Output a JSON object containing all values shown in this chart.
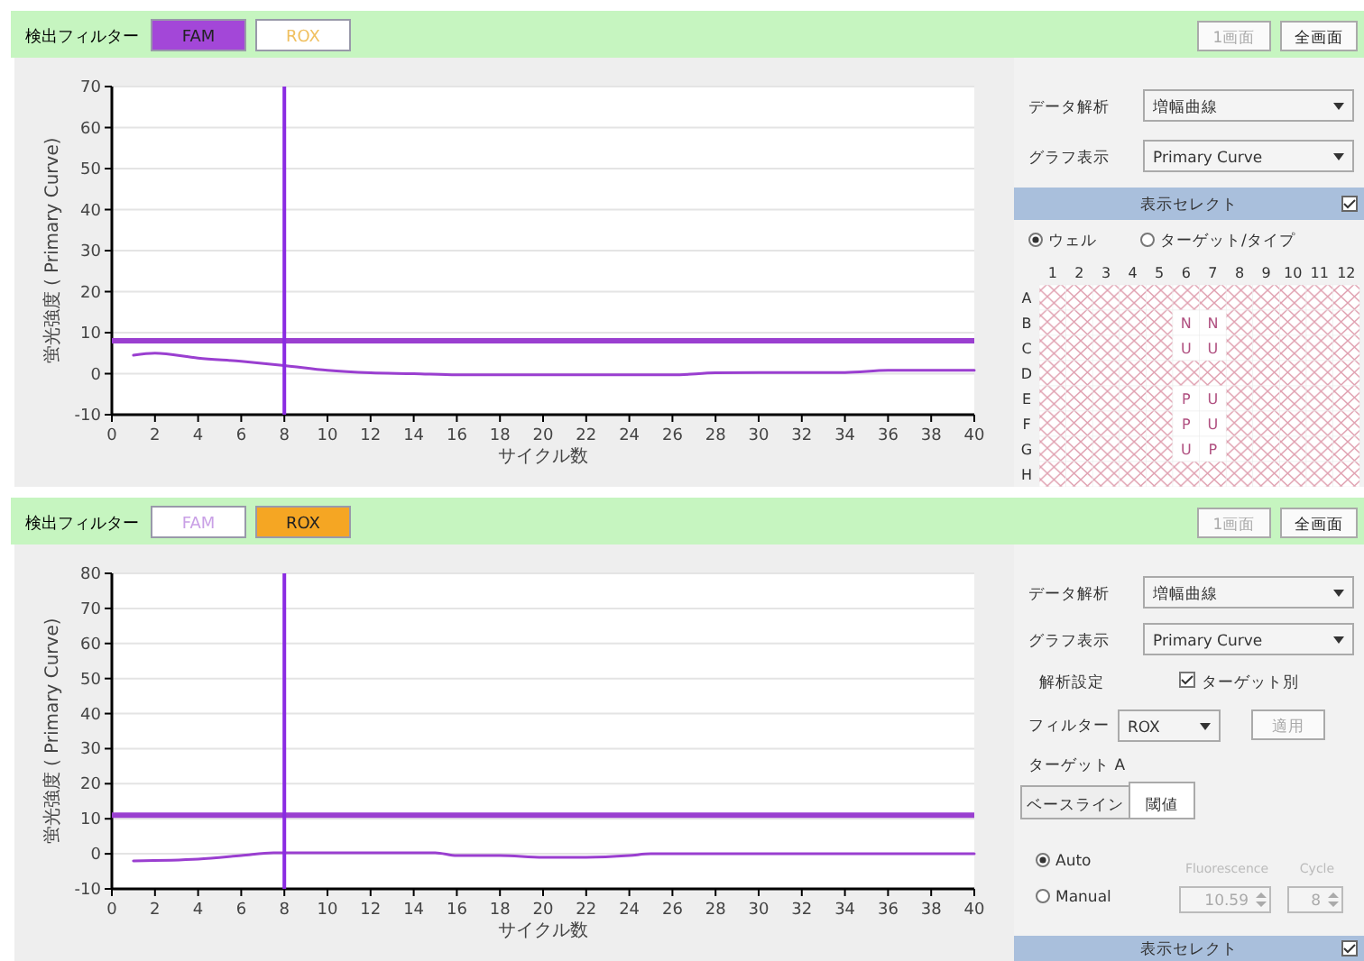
{
  "chart_data": [
    {
      "type": "line",
      "xlabel": "サイクル数",
      "ylabel": "蛍光強度 ( Primary Curve)",
      "xlim": [
        0,
        40
      ],
      "xticks": [
        0,
        2,
        4,
        6,
        8,
        10,
        12,
        14,
        16,
        18,
        20,
        22,
        24,
        26,
        28,
        30,
        32,
        34,
        36,
        38,
        40
      ],
      "ylim": [
        -10,
        70
      ],
      "yticks": [
        -10,
        0,
        10,
        20,
        30,
        40,
        50,
        60,
        70
      ],
      "grid": "y",
      "annotations": [
        "検出フィルター",
        "FAM",
        "ROX"
      ],
      "series": [
        {
          "color": "#9a3fd0",
          "x": [
            1,
            2,
            4,
            6,
            8,
            10,
            12,
            14,
            16,
            18,
            20,
            22,
            24,
            26,
            28,
            30,
            32,
            34,
            36,
            38,
            40
          ],
          "values": [
            4.5,
            5,
            3.8,
            3,
            2,
            0.8,
            0.2,
            0,
            -0.3,
            -0.3,
            -0.3,
            -0.3,
            -0.3,
            -0.3,
            0.2,
            0.3,
            0.3,
            0.3,
            0.8,
            0.8,
            0.8
          ]
        }
      ],
      "ref_lines": [
        {
          "axis": "y",
          "value": 8,
          "color": "#9a3fd0"
        },
        {
          "axis": "x",
          "value": 8,
          "color": "#8a2be2"
        }
      ]
    },
    {
      "type": "other",
      "annotations": [
        "1画面",
        "全画面",
        "データ解析",
        "増幅曲線",
        "グラフ表示",
        "Primary Curve",
        "表示セレクト",
        "ウェル",
        "ターゲット/タイプ"
      ]
    },
    {
      "type": "heatmap",
      "categories": [
        "1",
        "2",
        "3",
        "4",
        "5",
        "6",
        "7",
        "8",
        "9",
        "10",
        "11",
        "12"
      ],
      "y_categories": [
        "A",
        "B",
        "C",
        "D",
        "E",
        "F",
        "G",
        "H"
      ],
      "cells": [
        [
          null,
          null,
          null,
          null,
          null,
          null,
          null,
          null,
          null,
          null,
          null,
          null
        ],
        [
          null,
          null,
          null,
          null,
          null,
          null,
          null,
          null,
          null,
          null,
          null,
          null
        ],
        [
          null,
          null,
          null,
          null,
          null,
          null,
          null,
          null,
          null,
          null,
          null,
          null
        ],
        [
          null,
          null,
          null,
          null,
          null,
          null,
          null,
          null,
          null,
          null,
          null,
          null
        ],
        [
          null,
          null,
          null,
          null,
          null,
          null,
          null,
          null,
          null,
          null,
          null,
          null
        ],
        [
          null,
          null,
          null,
          null,
          null,
          null,
          null,
          null,
          null,
          null,
          null,
          null
        ],
        [
          null,
          null,
          null,
          null,
          null,
          null,
          null,
          null,
          null,
          null,
          null,
          null
        ],
        [
          null,
          null,
          null,
          null,
          null,
          null,
          null,
          null,
          null,
          null,
          null,
          null
        ]
      ],
      "cell_labels": [
        [
          null,
          null,
          null,
          null,
          null,
          null,
          null,
          null,
          null,
          null,
          null,
          null
        ],
        [
          null,
          null,
          null,
          null,
          null,
          "N",
          "N",
          null,
          null,
          null,
          null,
          null
        ],
        [
          null,
          null,
          null,
          null,
          null,
          "U",
          "U",
          null,
          null,
          null,
          null,
          null
        ],
        [
          null,
          null,
          null,
          null,
          null,
          null,
          null,
          null,
          null,
          null,
          null,
          null
        ],
        [
          null,
          null,
          null,
          null,
          null,
          "P",
          "U",
          null,
          null,
          null,
          null,
          null
        ],
        [
          null,
          null,
          null,
          null,
          null,
          "P",
          "U",
          null,
          null,
          null,
          null,
          null
        ],
        [
          null,
          null,
          null,
          null,
          null,
          "U",
          "P",
          null,
          null,
          null,
          null,
          null
        ],
        [
          null,
          null,
          null,
          null,
          null,
          null,
          null,
          null,
          null,
          null,
          null,
          null
        ]
      ]
    },
    {
      "type": "line",
      "xlabel": "サイクル数",
      "ylabel": "蛍光強度 ( Primary Curve)",
      "xlim": [
        0,
        40
      ],
      "xticks": [
        0,
        2,
        4,
        6,
        8,
        10,
        12,
        14,
        16,
        18,
        20,
        22,
        24,
        26,
        28,
        30,
        32,
        34,
        36,
        38,
        40
      ],
      "ylim": [
        -10,
        80
      ],
      "yticks": [
        -10,
        0,
        10,
        20,
        30,
        40,
        50,
        60,
        70,
        80
      ],
      "grid": "y",
      "annotations": [
        "検出フィルター",
        "FAM",
        "ROX"
      ],
      "series": [
        {
          "color": "#9a3fd0",
          "x": [
            1,
            4,
            6,
            7.5,
            10,
            15,
            16,
            18,
            20,
            22,
            24,
            25,
            28,
            32,
            36,
            40
          ],
          "values": [
            -2,
            -1.5,
            -0.5,
            0.3,
            0.3,
            0.3,
            -0.5,
            -0.5,
            -1,
            -1,
            -0.5,
            0,
            0,
            0,
            0,
            0
          ]
        }
      ],
      "ref_lines": [
        {
          "axis": "y",
          "value": 11,
          "color": "#9a3fd0"
        },
        {
          "axis": "x",
          "value": 8,
          "color": "#8a2be2"
        }
      ]
    },
    {
      "type": "other",
      "annotations": [
        "1画面",
        "全画面",
        "データ解析",
        "増幅曲線",
        "グラフ表示",
        "Primary Curve",
        "解析設定",
        "ターゲット別",
        "フィルター",
        "ROX",
        "適用",
        "ターゲット A",
        "ベースライン",
        "閾値",
        "Auto",
        "Manual",
        "Fluorescence",
        "Cycle",
        "10.59",
        "8",
        "表示セレクト"
      ]
    }
  ]
}
